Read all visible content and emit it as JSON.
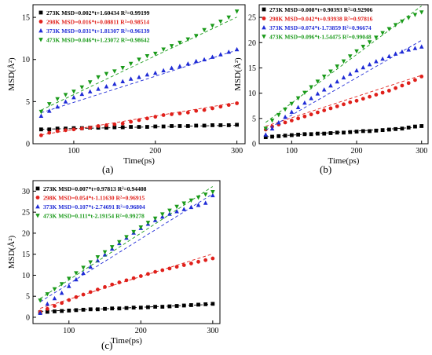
{
  "chart_data": [
    {
      "panel_label": "(a)",
      "type": "scatter",
      "xlabel": "Time(ps)",
      "ylabel": "MSD(Å²)",
      "xlim": [
        50,
        310
      ],
      "ylim": [
        0,
        16.5
      ],
      "xticks": [
        100,
        200,
        300
      ],
      "yticks": [
        0,
        5,
        10,
        15
      ],
      "legend_position": "top-left",
      "series": [
        {
          "name": "273K",
          "color": "#000000",
          "marker": "square",
          "fit_label": "273K MSD=0.002*t+1.60434 R²=0.99199",
          "slope": 0.002,
          "intercept": 1.60434,
          "x": [
            60,
            70,
            80,
            90,
            100,
            110,
            120,
            130,
            140,
            150,
            160,
            170,
            180,
            190,
            200,
            210,
            220,
            230,
            240,
            250,
            260,
            270,
            280,
            290,
            300
          ],
          "y": [
            1.7,
            1.7,
            1.8,
            1.8,
            1.85,
            1.85,
            1.9,
            1.9,
            1.9,
            1.95,
            1.95,
            2.0,
            2.0,
            2.0,
            2.05,
            2.05,
            2.1,
            2.1,
            2.1,
            2.15,
            2.15,
            2.2,
            2.2,
            2.2,
            2.25
          ]
        },
        {
          "name": "298K",
          "color": "#e0201b",
          "marker": "circle",
          "fit_label": "298K MSD=0.016*t+0.08811 R²=0.98514",
          "slope": 0.016,
          "intercept": 0.08811,
          "x": [
            60,
            70,
            80,
            90,
            100,
            110,
            120,
            130,
            140,
            150,
            160,
            170,
            180,
            190,
            200,
            210,
            220,
            230,
            240,
            250,
            260,
            270,
            280,
            290,
            300
          ],
          "y": [
            1.0,
            1.3,
            1.5,
            1.6,
            1.7,
            1.8,
            1.9,
            2.1,
            2.2,
            2.3,
            2.4,
            2.6,
            2.8,
            3.0,
            3.2,
            3.4,
            3.5,
            3.6,
            3.7,
            3.9,
            4.0,
            4.2,
            4.4,
            4.6,
            4.8
          ]
        },
        {
          "name": "373K",
          "color": "#1f2bd6",
          "marker": "triangle-up",
          "fit_label": "373K MSD=0.031*t+1.81307 R²=0.96139",
          "slope": 0.031,
          "intercept": 1.81307,
          "x": [
            60,
            70,
            80,
            90,
            100,
            110,
            120,
            130,
            140,
            150,
            160,
            170,
            180,
            190,
            200,
            210,
            220,
            230,
            240,
            250,
            260,
            270,
            280,
            290,
            300
          ],
          "y": [
            3.3,
            3.9,
            4.4,
            5.0,
            5.5,
            5.9,
            6.2,
            6.5,
            6.8,
            7.1,
            7.4,
            7.7,
            7.9,
            8.2,
            8.4,
            8.7,
            9.0,
            9.2,
            9.5,
            9.8,
            10.0,
            10.3,
            10.6,
            10.9,
            11.2
          ]
        },
        {
          "name": "473K",
          "color": "#1a9a1a",
          "marker": "triangle-down",
          "fit_label": "473K MSD=0.046*t+1.23072 R²=0.98642",
          "slope": 0.046,
          "intercept": 1.23072,
          "x": [
            60,
            70,
            80,
            90,
            100,
            110,
            120,
            130,
            140,
            150,
            160,
            170,
            180,
            190,
            200,
            210,
            220,
            230,
            240,
            250,
            260,
            270,
            280,
            290,
            300
          ],
          "y": [
            3.8,
            4.7,
            5.3,
            5.8,
            6.2,
            6.7,
            7.3,
            7.9,
            8.3,
            8.6,
            9.0,
            9.5,
            10.0,
            10.4,
            10.7,
            11.2,
            11.6,
            12.0,
            12.4,
            12.8,
            13.5,
            14.0,
            14.5,
            15.0,
            15.7
          ]
        }
      ]
    },
    {
      "panel_label": "(b)",
      "type": "scatter",
      "xlabel": "Time(ps)",
      "ylabel": "MSD(Å²)",
      "xlim": [
        50,
        310
      ],
      "ylim": [
        0,
        27.5
      ],
      "xticks": [
        100,
        200,
        300
      ],
      "yticks": [
        0,
        5,
        10,
        15,
        20,
        25
      ],
      "legend_position": "top-left",
      "series": [
        {
          "name": "273K",
          "color": "#000000",
          "marker": "square",
          "fit_label": "273K MSD=0.008*t+0.90393 R²=0.92906",
          "slope": 0.008,
          "intercept": 0.90393,
          "x": [
            60,
            70,
            80,
            90,
            100,
            110,
            120,
            130,
            140,
            150,
            160,
            170,
            180,
            190,
            200,
            210,
            220,
            230,
            240,
            250,
            260,
            270,
            280,
            290,
            300
          ],
          "y": [
            1.3,
            1.4,
            1.5,
            1.6,
            1.7,
            1.8,
            1.9,
            1.9,
            2.0,
            2.0,
            2.1,
            2.2,
            2.2,
            2.3,
            2.4,
            2.5,
            2.5,
            2.6,
            2.7,
            2.8,
            2.9,
            3.0,
            3.2,
            3.4,
            3.5
          ]
        },
        {
          "name": "298K",
          "color": "#e0201b",
          "marker": "circle",
          "fit_label": "298K MSD=0.042*t+0.93938 R²=0.97816",
          "slope": 0.042,
          "intercept": 0.93938,
          "x": [
            60,
            70,
            80,
            90,
            100,
            110,
            120,
            130,
            140,
            150,
            160,
            170,
            180,
            190,
            200,
            210,
            220,
            230,
            240,
            250,
            260,
            270,
            280,
            290,
            300
          ],
          "y": [
            2.8,
            3.4,
            3.8,
            4.2,
            4.6,
            5.0,
            5.4,
            5.8,
            6.2,
            6.6,
            7.0,
            7.4,
            7.8,
            8.2,
            8.5,
            8.9,
            9.3,
            9.7,
            10.1,
            10.5,
            11.0,
            11.5,
            12.0,
            12.6,
            13.3
          ]
        },
        {
          "name": "373K",
          "color": "#1f2bd6",
          "marker": "triangle-up",
          "fit_label": "373K MSD=0.074*t-1.73859 R²=0.96674",
          "slope": 0.074,
          "intercept": -1.73859,
          "x": [
            60,
            70,
            80,
            90,
            100,
            110,
            120,
            130,
            140,
            150,
            160,
            170,
            180,
            190,
            200,
            210,
            220,
            230,
            240,
            250,
            260,
            270,
            280,
            290,
            300
          ],
          "y": [
            1.8,
            3.0,
            4.2,
            5.3,
            6.3,
            7.2,
            8.1,
            9.0,
            9.9,
            10.7,
            11.5,
            12.3,
            13.1,
            13.8,
            14.5,
            15.1,
            15.7,
            16.3,
            16.8,
            17.3,
            17.8,
            18.2,
            18.6,
            18.9,
            19.2
          ]
        },
        {
          "name": "473K",
          "color": "#1a9a1a",
          "marker": "triangle-down",
          "fit_label": "473K MSD=0.096*t-1.54475 R²=0.99048",
          "slope": 0.096,
          "intercept": -1.54475,
          "x": [
            60,
            70,
            80,
            90,
            100,
            110,
            120,
            130,
            140,
            150,
            160,
            170,
            180,
            190,
            200,
            210,
            220,
            230,
            240,
            250,
            260,
            270,
            280,
            290,
            300
          ],
          "y": [
            3.0,
            4.6,
            5.7,
            6.8,
            7.9,
            9.0,
            10.1,
            11.2,
            12.3,
            13.3,
            14.3,
            15.3,
            16.3,
            17.3,
            18.3,
            19.2,
            20.1,
            21.0,
            21.9,
            22.7,
            23.5,
            24.2,
            24.9,
            25.5,
            26.0
          ]
        }
      ]
    },
    {
      "panel_label": "(c)",
      "type": "scatter",
      "xlabel": "Time(ps)",
      "ylabel": "MSD(Å²)",
      "xlim": [
        50,
        310
      ],
      "ylim": [
        -1.5,
        32.5
      ],
      "xticks": [
        100,
        200,
        300
      ],
      "yticks": [
        0,
        5,
        10,
        15,
        20,
        25,
        30
      ],
      "legend_position": "top-left",
      "series": [
        {
          "name": "273K",
          "color": "#000000",
          "marker": "square",
          "fit_label": "273K MSD=0.007*t+0.97813 R²=0.94408",
          "slope": 0.007,
          "intercept": 0.97813,
          "x": [
            60,
            70,
            80,
            90,
            100,
            110,
            120,
            130,
            140,
            150,
            160,
            170,
            180,
            190,
            200,
            210,
            220,
            230,
            240,
            250,
            260,
            270,
            280,
            290,
            300
          ],
          "y": [
            1.2,
            1.3,
            1.4,
            1.5,
            1.6,
            1.7,
            1.8,
            1.9,
            1.9,
            2.0,
            2.1,
            2.1,
            2.2,
            2.3,
            2.3,
            2.4,
            2.5,
            2.5,
            2.6,
            2.7,
            2.8,
            2.9,
            3.0,
            3.1,
            3.2
          ]
        },
        {
          "name": "298K",
          "color": "#e0201b",
          "marker": "circle",
          "fit_label": "298K MSD=0.054*t-1.11630 R²=0.96915",
          "slope": 0.054,
          "intercept": -1.1163,
          "x": [
            60,
            70,
            80,
            90,
            100,
            110,
            120,
            130,
            140,
            150,
            160,
            170,
            180,
            190,
            200,
            210,
            220,
            230,
            240,
            250,
            260,
            270,
            280,
            290,
            300
          ],
          "y": [
            1.3,
            2.0,
            2.7,
            3.4,
            4.1,
            4.8,
            5.4,
            6.0,
            6.6,
            7.2,
            7.8,
            8.3,
            8.8,
            9.3,
            9.8,
            10.3,
            10.8,
            11.2,
            11.6,
            12.0,
            12.4,
            12.8,
            13.2,
            13.6,
            14.0
          ]
        },
        {
          "name": "373K",
          "color": "#1f2bd6",
          "marker": "triangle-up",
          "fit_label": "373K MSD=0.107*t-2.74691 R²=0.96804",
          "slope": 0.107,
          "intercept": -2.74691,
          "x": [
            60,
            70,
            80,
            90,
            100,
            110,
            120,
            130,
            140,
            150,
            160,
            170,
            180,
            190,
            200,
            210,
            220,
            230,
            240,
            250,
            260,
            270,
            280,
            290,
            300
          ],
          "y": [
            1.0,
            3.2,
            4.5,
            5.8,
            7.4,
            9.0,
            10.5,
            12.0,
            13.5,
            14.9,
            16.3,
            17.6,
            18.9,
            20.1,
            21.2,
            22.2,
            23.1,
            23.9,
            24.6,
            25.2,
            25.7,
            26.2,
            26.7,
            27.2,
            29.0
          ]
        },
        {
          "name": "473K",
          "color": "#1a9a1a",
          "marker": "triangle-down",
          "fit_label": "473K MSD=0.111*t-2.19154 R²=0.99278",
          "slope": 0.111,
          "intercept": -2.19154,
          "x": [
            60,
            70,
            80,
            90,
            100,
            110,
            120,
            130,
            140,
            150,
            160,
            170,
            180,
            190,
            200,
            210,
            220,
            230,
            240,
            250,
            260,
            270,
            280,
            290,
            300
          ],
          "y": [
            4.0,
            5.5,
            6.7,
            7.9,
            9.2,
            10.5,
            11.8,
            13.1,
            14.3,
            15.5,
            16.7,
            17.9,
            19.1,
            20.3,
            21.4,
            22.5,
            23.5,
            24.5,
            25.4,
            26.3,
            27.1,
            27.8,
            28.5,
            29.2,
            29.8
          ]
        }
      ]
    }
  ]
}
